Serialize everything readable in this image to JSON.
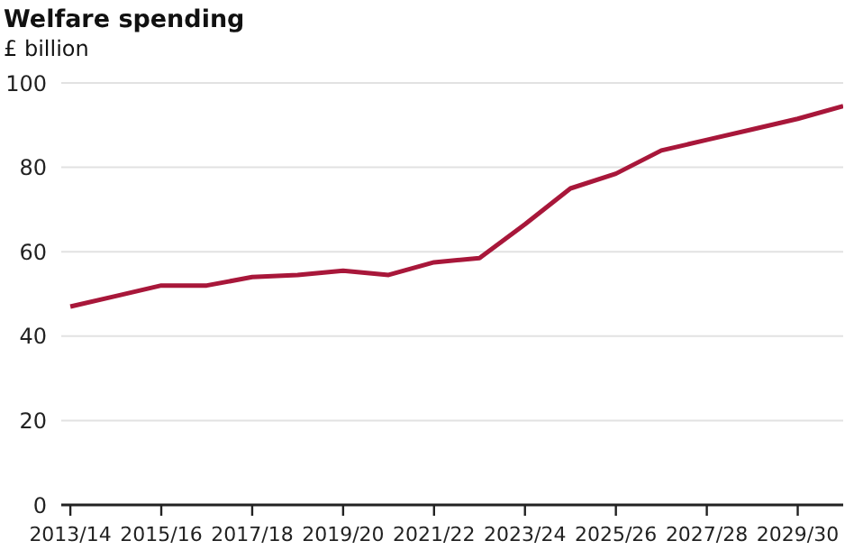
{
  "chart_data": {
    "type": "line",
    "title": "Welfare spending",
    "subtitle": "£ billion",
    "categories": [
      "2013/14",
      null,
      "2015/16",
      null,
      "2017/18",
      null,
      "2019/20",
      null,
      "2021/22",
      null,
      "2023/24",
      null,
      "2025/26",
      null,
      "2027/28",
      null,
      "2029/30",
      null
    ],
    "series": [
      {
        "color": "#a8173a",
        "values": [
          47,
          49.5,
          52,
          52,
          54,
          54.5,
          55.5,
          54.5,
          57.5,
          58.5,
          66.5,
          75,
          78.5,
          84,
          86.5,
          89,
          91.5,
          94.5
        ]
      }
    ],
    "ylim": [
      0,
      100
    ],
    "yticks": [
      0,
      20,
      40,
      60,
      80,
      100
    ],
    "grid": "y",
    "marker": "none",
    "line_style": "solid"
  }
}
